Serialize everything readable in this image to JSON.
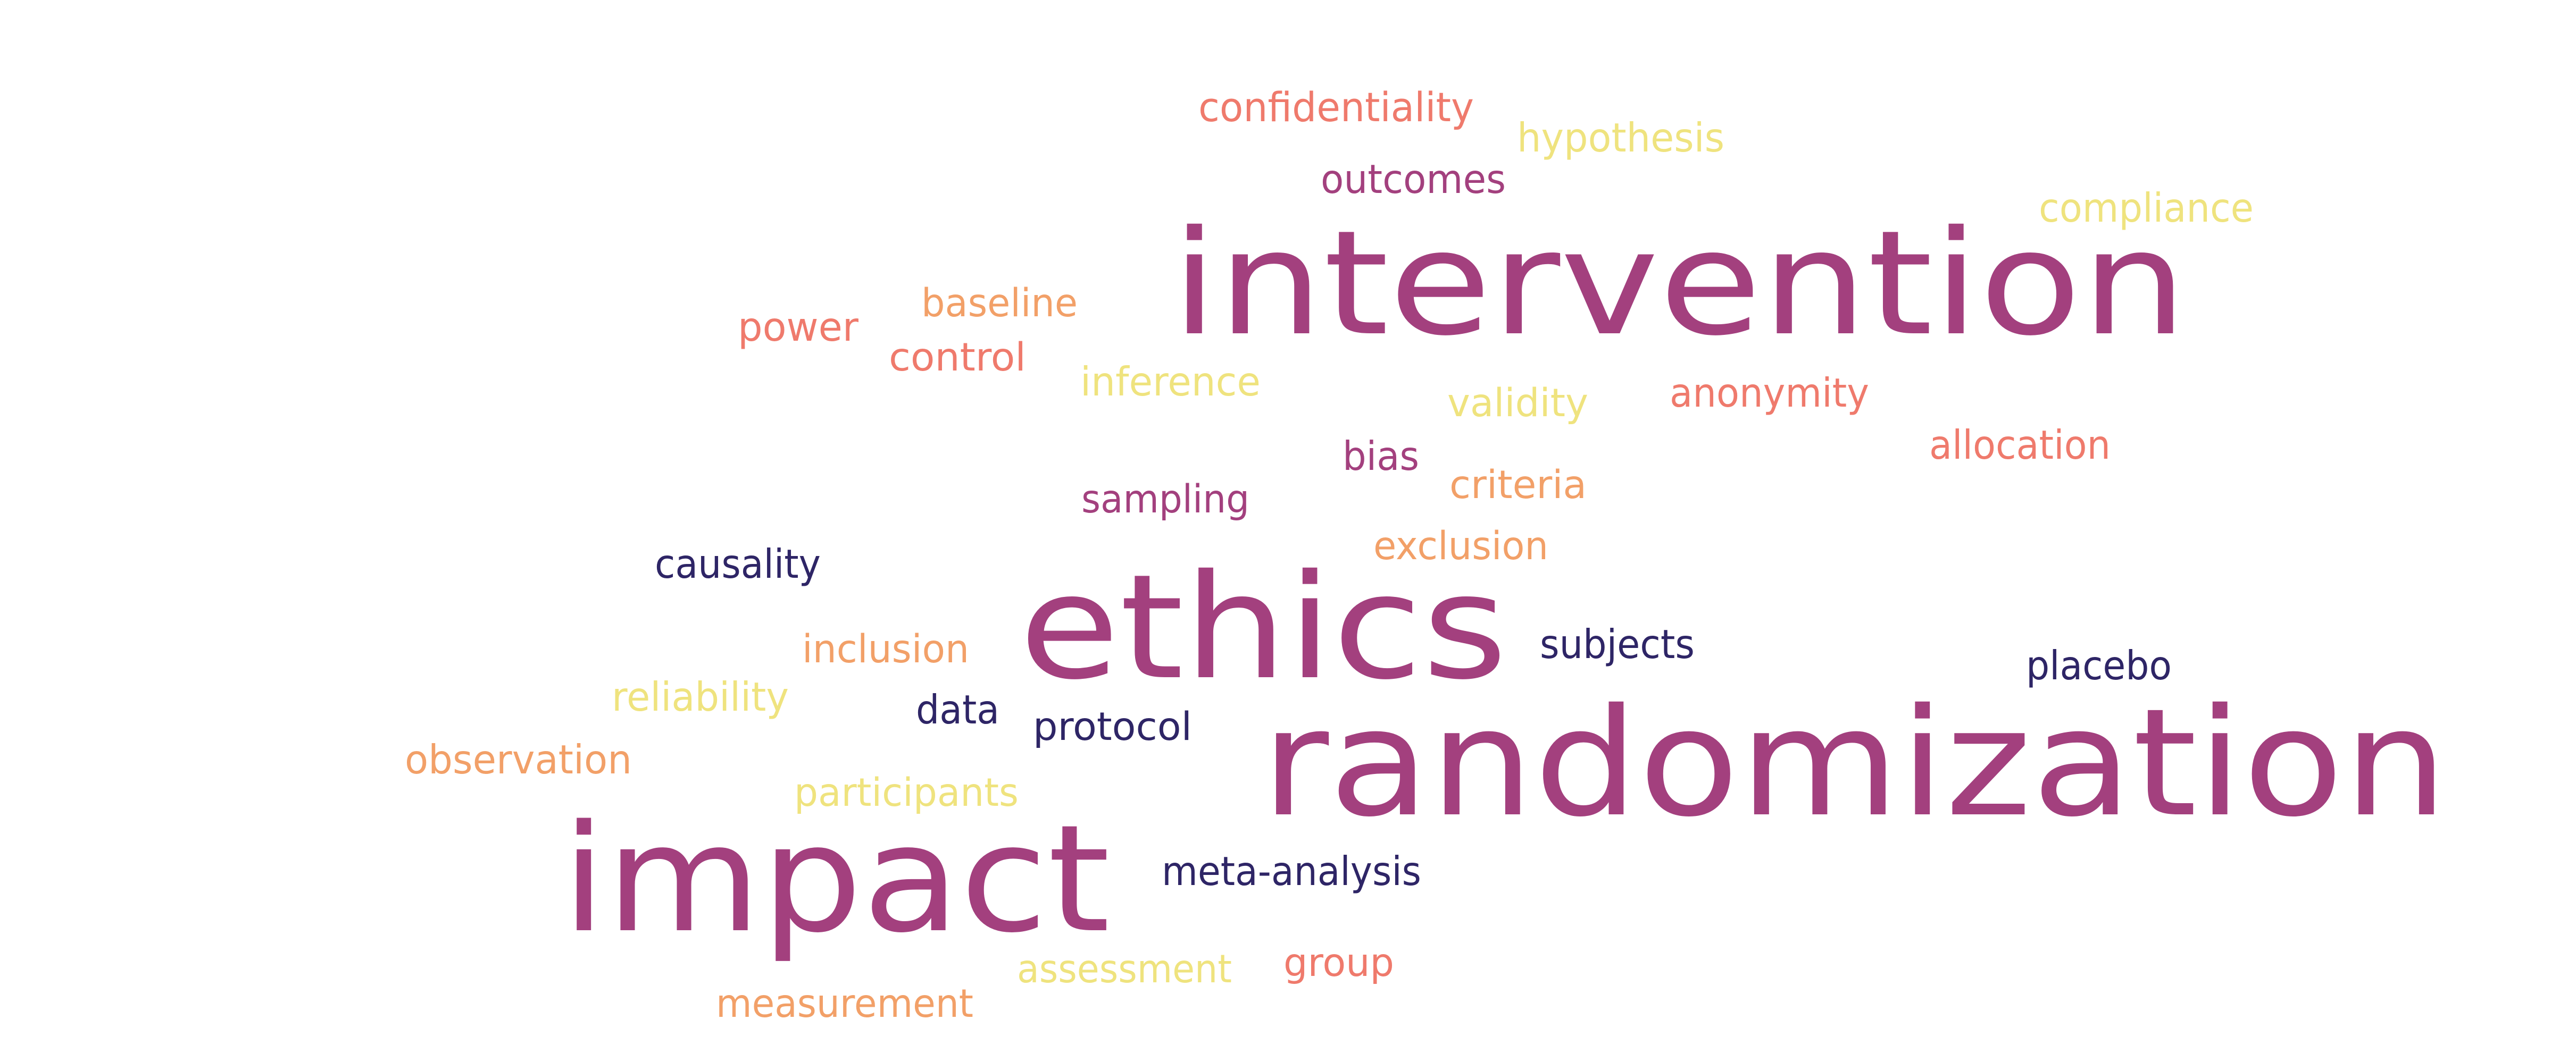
{
  "palette": {
    "purple": "#a3407e",
    "navy": "#2e2566",
    "salmon": "#ef7a6c",
    "orange": "#f2a068",
    "yellow": "#efe37e"
  },
  "words": [
    {
      "text": "confidentiality",
      "color": "#ef7a6c"
    },
    {
      "text": "hypothesis",
      "color": "#efe37e"
    },
    {
      "text": "outcomes",
      "color": "#a3407e"
    },
    {
      "text": "compliance",
      "color": "#efe37e"
    },
    {
      "text": "intervention",
      "color": "#a3407e"
    },
    {
      "text": "baseline",
      "color": "#f2a068"
    },
    {
      "text": "power",
      "color": "#ef7a6c"
    },
    {
      "text": "control",
      "color": "#ef7a6c"
    },
    {
      "text": "inference",
      "color": "#efe37e"
    },
    {
      "text": "validity",
      "color": "#efe37e"
    },
    {
      "text": "anonymity",
      "color": "#ef7a6c"
    },
    {
      "text": "allocation",
      "color": "#ef7a6c"
    },
    {
      "text": "bias",
      "color": "#a3407e"
    },
    {
      "text": "criteria",
      "color": "#f2a068"
    },
    {
      "text": "sampling",
      "color": "#a3407e"
    },
    {
      "text": "exclusion",
      "color": "#f2a068"
    },
    {
      "text": "causality",
      "color": "#2e2566"
    },
    {
      "text": "ethics",
      "color": "#a3407e"
    },
    {
      "text": "subjects",
      "color": "#2e2566"
    },
    {
      "text": "placebo",
      "color": "#2e2566"
    },
    {
      "text": "inclusion",
      "color": "#f2a068"
    },
    {
      "text": "reliability",
      "color": "#efe37e"
    },
    {
      "text": "data",
      "color": "#2e2566"
    },
    {
      "text": "protocol",
      "color": "#2e2566"
    },
    {
      "text": "observation",
      "color": "#f2a068"
    },
    {
      "text": "randomization",
      "color": "#a3407e"
    },
    {
      "text": "participants",
      "color": "#efe37e"
    },
    {
      "text": "impact",
      "color": "#a3407e"
    },
    {
      "text": "meta-analysis",
      "color": "#2e2566"
    },
    {
      "text": "assessment",
      "color": "#efe37e"
    },
    {
      "text": "group",
      "color": "#ef7a6c"
    },
    {
      "text": "measurement",
      "color": "#f2a068"
    }
  ]
}
